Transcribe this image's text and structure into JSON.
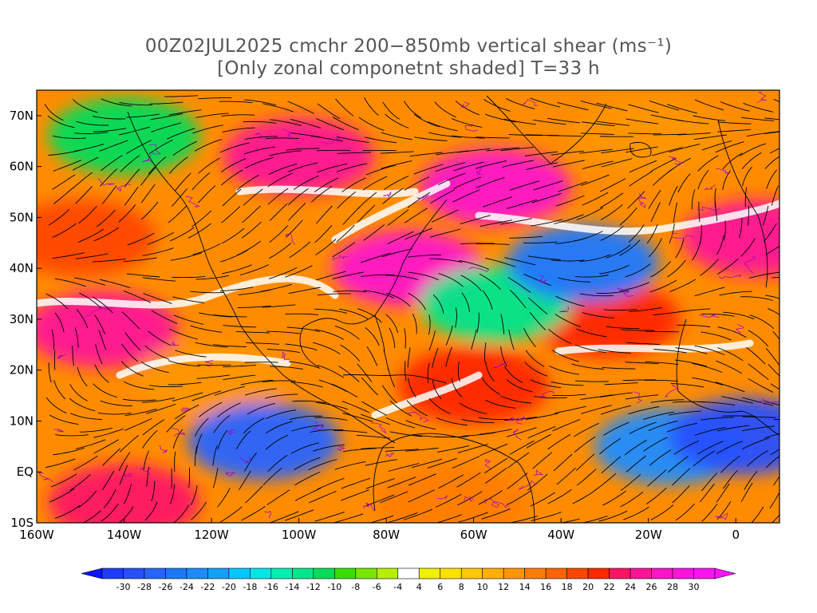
{
  "title": {
    "line1": "00Z02JUL2025 cmchr 200−850mb vertical shear (ms⁻¹)",
    "line2": "[Only zonal componetnt shaded] T=33 h"
  },
  "map": {
    "lon_range": [
      -160,
      10
    ],
    "lat_range": [
      -10,
      75
    ],
    "lon_ticks": [
      {
        "value": -160,
        "label": "160W"
      },
      {
        "value": -140,
        "label": "140W"
      },
      {
        "value": -120,
        "label": "120W"
      },
      {
        "value": -100,
        "label": "100W"
      },
      {
        "value": -80,
        "label": "80W"
      },
      {
        "value": -60,
        "label": "60W"
      },
      {
        "value": -40,
        "label": "40W"
      },
      {
        "value": -20,
        "label": "20W"
      },
      {
        "value": 0,
        "label": "0"
      }
    ],
    "lat_ticks": [
      {
        "value": 70,
        "label": "70N"
      },
      {
        "value": 60,
        "label": "60N"
      },
      {
        "value": 50,
        "label": "50N"
      },
      {
        "value": 40,
        "label": "40N"
      },
      {
        "value": 30,
        "label": "30N"
      },
      {
        "value": 20,
        "label": "20N"
      },
      {
        "value": 10,
        "label": "10N"
      },
      {
        "value": 0,
        "label": "EQ"
      },
      {
        "value": -10,
        "label": "10S"
      }
    ],
    "shaded_field": "zonal component of 200-850mb vertical shear",
    "overlays": [
      "streamlines",
      "coastlines",
      "political boundaries"
    ]
  },
  "colorbar": {
    "labels": [
      "-30",
      "-28",
      "-26",
      "-24",
      "-22",
      "-20",
      "-18",
      "-16",
      "-14",
      "-12",
      "-10",
      "-8",
      "-6",
      "-4",
      "4",
      "6",
      "8",
      "10",
      "12",
      "14",
      "16",
      "18",
      "20",
      "22",
      "24",
      "26",
      "28",
      "30"
    ],
    "colors": [
      "#1e3cff",
      "#2850ff",
      "#2864ff",
      "#1e78ff",
      "#1e8cff",
      "#14a0ff",
      "#00c8ff",
      "#00e6e6",
      "#00f0b4",
      "#00e68c",
      "#00dc5a",
      "#3cdc00",
      "#78e600",
      "#b4f000",
      "#ffffff",
      "#f0f000",
      "#ffe100",
      "#ffc800",
      "#ffaf00",
      "#ff9600",
      "#ff7d00",
      "#ff6400",
      "#ff4600",
      "#ff2800",
      "#ff1464",
      "#ff1496",
      "#ff14c8",
      "#ff14dc",
      "#ff14f0"
    ],
    "under_color": "#0a14ff",
    "over_color": "#ff14ff"
  },
  "chart_data": {
    "type": "heatmap",
    "title": "00Z02JUL2025 cmchr 200−850mb vertical shear (ms⁻¹) [Only zonal componetnt shaded] T=33 h",
    "units": "m/s",
    "x_range": [
      -160,
      10
    ],
    "y_range": [
      -10,
      75
    ],
    "levels": [
      -30,
      -28,
      -26,
      -24,
      -22,
      -20,
      -18,
      -16,
      -14,
      -12,
      -10,
      -8,
      -6,
      -4,
      4,
      6,
      8,
      10,
      12,
      14,
      16,
      18,
      20,
      22,
      24,
      26,
      28,
      30
    ],
    "regions": [
      {
        "lon": -145,
        "lat": 28,
        "value": 26
      },
      {
        "lon": -120,
        "lat": 18,
        "value": 14
      },
      {
        "lon": -150,
        "lat": 46,
        "value": 20
      },
      {
        "lon": -140,
        "lat": 66,
        "value": -10
      },
      {
        "lon": -100,
        "lat": 62,
        "value": 26
      },
      {
        "lon": -55,
        "lat": 56,
        "value": 28
      },
      {
        "lon": -75,
        "lat": 40,
        "value": 28
      },
      {
        "lon": -30,
        "lat": 30,
        "value": 22
      },
      {
        "lon": -60,
        "lat": 17,
        "value": 22
      },
      {
        "lon": -108,
        "lat": 6,
        "value": -26
      },
      {
        "lon": -55,
        "lat": 33,
        "value": -12
      },
      {
        "lon": -35,
        "lat": 41,
        "value": -24
      },
      {
        "lon": -15,
        "lat": 5,
        "value": -22
      },
      {
        "lon": 2,
        "lat": 7,
        "value": -28
      },
      {
        "lon": -140,
        "lat": -6,
        "value": 24
      },
      {
        "lon": -65,
        "lat": -6,
        "value": 16
      },
      {
        "lon": -20,
        "lat": 66,
        "value": 14
      },
      {
        "lon": 5,
        "lat": 46,
        "value": 26
      }
    ]
  }
}
